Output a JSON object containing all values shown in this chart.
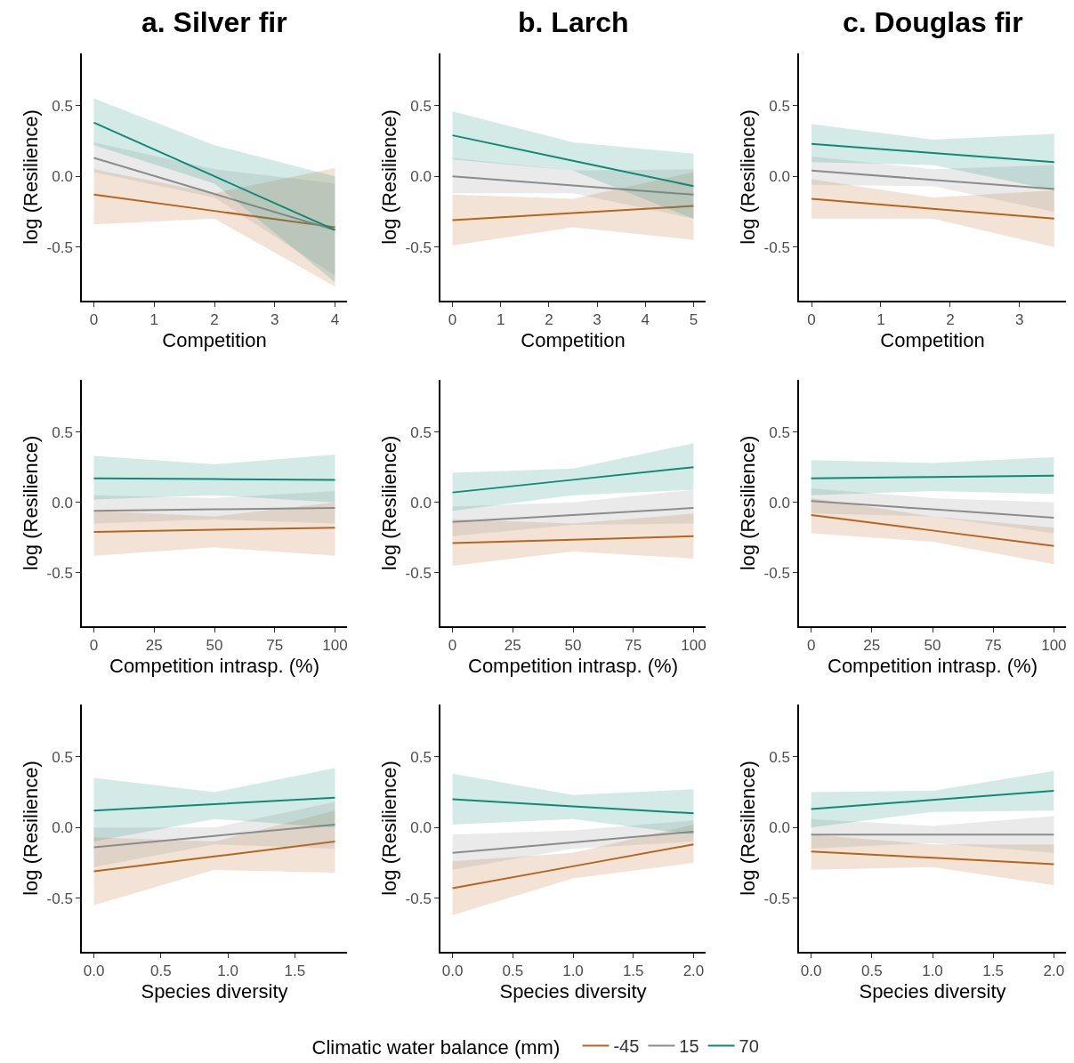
{
  "chart_data": [
    {
      "type": "line",
      "title": "a. Silver fir",
      "xlabel": "Competition",
      "ylabel": "log (Resilience)",
      "xlim": [
        -0.2,
        4.2
      ],
      "xticks": [
        0,
        1,
        2,
        3,
        4
      ],
      "ylim": [
        -0.88,
        0.87
      ],
      "yticks": [
        {
          "value": -0.5,
          "label": "-0.5"
        },
        {
          "value": 0,
          "label": "0.0"
        },
        {
          "value": 0.5,
          "label": "0.5"
        }
      ],
      "legend": "bottom",
      "legend_title": "Climatic water balance (mm)",
      "series": [
        {
          "name": "-45",
          "color": "#b5651d",
          "x": [
            0,
            2,
            4
          ],
          "values": [
            -0.13,
            -0.245,
            -0.36
          ],
          "lower": [
            -0.34,
            -0.3,
            -0.78
          ],
          "upper": [
            0.05,
            -0.12,
            0.06
          ]
        },
        {
          "name": "15",
          "color": "#8c8c8c",
          "x": [
            0,
            2,
            4
          ],
          "values": [
            0.13,
            -0.125,
            -0.38
          ],
          "lower": [
            0.03,
            -0.15,
            -0.7
          ],
          "upper": [
            0.24,
            0.05,
            -0.05
          ]
        },
        {
          "name": "70",
          "color": "#0f8a74",
          "x": [
            0,
            2,
            4
          ],
          "values": [
            0.38,
            0,
            -0.38
          ],
          "lower": [
            0.22,
            -0.05,
            -0.75
          ],
          "upper": [
            0.55,
            0.22,
            0
          ]
        }
      ]
    },
    {
      "type": "line",
      "title": "b. Larch",
      "xlabel": "Competition",
      "ylabel": "log (Resilience)",
      "xlim": [
        -0.25,
        5.25
      ],
      "xticks": [
        0,
        1,
        2,
        3,
        4,
        5
      ],
      "ylim": [
        -0.88,
        0.87
      ],
      "yticks": [
        {
          "value": -0.5,
          "label": "-0.5"
        },
        {
          "value": 0,
          "label": "0.0"
        },
        {
          "value": 0.5,
          "label": "0.5"
        }
      ],
      "series": [
        {
          "name": "-45",
          "color": "#b5651d",
          "x": [
            0,
            2.5,
            5
          ],
          "values": [
            -0.31,
            -0.26,
            -0.21
          ],
          "lower": [
            -0.49,
            -0.36,
            -0.45
          ],
          "upper": [
            -0.13,
            -0.16,
            0.03
          ]
        },
        {
          "name": "15",
          "color": "#8c8c8c",
          "x": [
            0,
            2.5,
            5
          ],
          "values": [
            0,
            -0.065,
            -0.13
          ],
          "lower": [
            -0.12,
            -0.12,
            -0.3
          ],
          "upper": [
            0.13,
            0.04,
            0.05
          ]
        },
        {
          "name": "70",
          "color": "#0f8a74",
          "x": [
            0,
            2.5,
            5
          ],
          "values": [
            0.29,
            0.11,
            -0.07
          ],
          "lower": [
            0.12,
            0.04,
            -0.3
          ],
          "upper": [
            0.46,
            0.24,
            0.16
          ]
        }
      ]
    },
    {
      "type": "line",
      "title": "c. Douglas fir",
      "xlabel": "Competition",
      "ylabel": "log (Resilience)",
      "xlim": [
        -0.18,
        3.67
      ],
      "xticks": [
        0,
        1,
        2,
        3
      ],
      "ylim": [
        -0.88,
        0.87
      ],
      "yticks": [
        {
          "value": -0.5,
          "label": "-0.5"
        },
        {
          "value": 0,
          "label": "0.0"
        },
        {
          "value": 0.5,
          "label": "0.5"
        }
      ],
      "series": [
        {
          "name": "-45",
          "color": "#b5651d",
          "x": [
            0,
            1.75,
            3.5
          ],
          "values": [
            -0.16,
            -0.23,
            -0.3
          ],
          "lower": [
            -0.3,
            -0.3,
            -0.5
          ],
          "upper": [
            -0.02,
            -0.15,
            -0.1
          ]
        },
        {
          "name": "15",
          "color": "#8c8c8c",
          "x": [
            0,
            1.75,
            3.5
          ],
          "values": [
            0.04,
            -0.025,
            -0.09
          ],
          "lower": [
            -0.06,
            -0.07,
            -0.25
          ],
          "upper": [
            0.14,
            0.05,
            0.08
          ]
        },
        {
          "name": "70",
          "color": "#0f8a74",
          "x": [
            0,
            1.75,
            3.5
          ],
          "values": [
            0.23,
            0.165,
            0.1
          ],
          "lower": [
            0.1,
            0.08,
            -0.1
          ],
          "upper": [
            0.37,
            0.26,
            0.3
          ]
        }
      ]
    },
    {
      "type": "line",
      "xlabel": "Competition intrasp. (%)",
      "ylabel": "log (Resilience)",
      "xlim": [
        -5,
        105
      ],
      "xticks": [
        0,
        25,
        50,
        75,
        100
      ],
      "ylim": [
        -0.88,
        0.87
      ],
      "yticks": [
        {
          "value": -0.5,
          "label": "-0.5"
        },
        {
          "value": 0,
          "label": "0.0"
        },
        {
          "value": 0.5,
          "label": "0.5"
        }
      ],
      "series": [
        {
          "name": "-45",
          "color": "#b5651d",
          "x": [
            0,
            50,
            100
          ],
          "values": [
            -0.21,
            -0.195,
            -0.18
          ],
          "lower": [
            -0.38,
            -0.32,
            -0.38
          ],
          "upper": [
            -0.06,
            -0.1,
            0
          ]
        },
        {
          "name": "15",
          "color": "#8c8c8c",
          "x": [
            0,
            50,
            100
          ],
          "values": [
            -0.06,
            -0.05,
            -0.04
          ],
          "lower": [
            -0.15,
            -0.12,
            -0.15
          ],
          "upper": [
            0.05,
            0.03,
            0.08
          ]
        },
        {
          "name": "70",
          "color": "#0f8a74",
          "x": [
            0,
            50,
            100
          ],
          "values": [
            0.17,
            0.165,
            0.16
          ],
          "lower": [
            0.02,
            0.05,
            0
          ],
          "upper": [
            0.33,
            0.27,
            0.34
          ]
        }
      ]
    },
    {
      "type": "line",
      "xlabel": "Competition intrasp. (%)",
      "ylabel": "log (Resilience)",
      "xlim": [
        -5,
        105
      ],
      "xticks": [
        0,
        25,
        50,
        75,
        100
      ],
      "ylim": [
        -0.88,
        0.87
      ],
      "yticks": [
        {
          "value": -0.5,
          "label": "-0.5"
        },
        {
          "value": 0,
          "label": "0.0"
        },
        {
          "value": 0.5,
          "label": "0.5"
        }
      ],
      "series": [
        {
          "name": "-45",
          "color": "#b5651d",
          "x": [
            0,
            50,
            100
          ],
          "values": [
            -0.29,
            -0.265,
            -0.24
          ],
          "lower": [
            -0.45,
            -0.35,
            -0.4
          ],
          "upper": [
            -0.12,
            -0.15,
            -0.08
          ]
        },
        {
          "name": "15",
          "color": "#8c8c8c",
          "x": [
            0,
            50,
            100
          ],
          "values": [
            -0.14,
            -0.09,
            -0.04
          ],
          "lower": [
            -0.24,
            -0.16,
            -0.15
          ],
          "upper": [
            -0.03,
            0,
            0.09
          ]
        },
        {
          "name": "70",
          "color": "#0f8a74",
          "x": [
            0,
            50,
            100
          ],
          "values": [
            0.07,
            0.16,
            0.25
          ],
          "lower": [
            -0.06,
            0.05,
            0.09
          ],
          "upper": [
            0.21,
            0.24,
            0.42
          ]
        }
      ]
    },
    {
      "type": "line",
      "xlabel": "Competition intrasp. (%)",
      "ylabel": "log (Resilience)",
      "xlim": [
        -5,
        105
      ],
      "xticks": [
        0,
        25,
        50,
        75,
        100
      ],
      "ylim": [
        -0.88,
        0.87
      ],
      "yticks": [
        {
          "value": -0.5,
          "label": "-0.5"
        },
        {
          "value": 0,
          "label": "0.0"
        },
        {
          "value": 0.5,
          "label": "0.5"
        }
      ],
      "series": [
        {
          "name": "-45",
          "color": "#b5651d",
          "x": [
            0,
            50,
            100
          ],
          "values": [
            -0.09,
            -0.2,
            -0.31
          ],
          "lower": [
            -0.22,
            -0.28,
            -0.44
          ],
          "upper": [
            0.03,
            -0.1,
            -0.18
          ]
        },
        {
          "name": "15",
          "color": "#8c8c8c",
          "x": [
            0,
            50,
            100
          ],
          "values": [
            0.01,
            -0.05,
            -0.11
          ],
          "lower": [
            -0.08,
            -0.1,
            -0.22
          ],
          "upper": [
            0.1,
            0.03,
            0
          ]
        },
        {
          "name": "70",
          "color": "#0f8a74",
          "x": [
            0,
            50,
            100
          ],
          "values": [
            0.17,
            0.18,
            0.19
          ],
          "lower": [
            0.05,
            0.08,
            0.06
          ],
          "upper": [
            0.3,
            0.28,
            0.32
          ]
        }
      ]
    },
    {
      "type": "line",
      "xlabel": "Species diversity",
      "ylabel": "log (Resilience)",
      "xlim": [
        -0.09,
        1.89
      ],
      "xticks": [
        {
          "value": 0,
          "label": "0.0"
        },
        0.5,
        {
          "value": 1,
          "label": "1.0"
        },
        1.5
      ],
      "ylim": [
        -0.88,
        0.87
      ],
      "yticks": [
        {
          "value": -0.5,
          "label": "-0.5"
        },
        {
          "value": 0,
          "label": "0.0"
        },
        {
          "value": 0.5,
          "label": "0.5"
        }
      ],
      "series": [
        {
          "name": "-45",
          "color": "#b5651d",
          "x": [
            0,
            0.9,
            1.8
          ],
          "values": [
            -0.31,
            -0.205,
            -0.1
          ],
          "lower": [
            -0.55,
            -0.3,
            -0.32
          ],
          "upper": [
            -0.07,
            -0.1,
            0.12
          ]
        },
        {
          "name": "15",
          "color": "#8c8c8c",
          "x": [
            0,
            0.9,
            1.8
          ],
          "values": [
            -0.14,
            -0.06,
            0.02
          ],
          "lower": [
            -0.28,
            -0.12,
            -0.15
          ],
          "upper": [
            0,
            0,
            0.18
          ]
        },
        {
          "name": "70",
          "color": "#0f8a74",
          "x": [
            0,
            0.9,
            1.8
          ],
          "values": [
            0.12,
            0.165,
            0.21
          ],
          "lower": [
            -0.1,
            0.06,
            0
          ],
          "upper": [
            0.35,
            0.25,
            0.42
          ]
        }
      ]
    },
    {
      "type": "line",
      "xlabel": "Species diversity",
      "ylabel": "log (Resilience)",
      "xlim": [
        -0.1,
        2.1
      ],
      "xticks": [
        {
          "value": 0,
          "label": "0.0"
        },
        0.5,
        {
          "value": 1,
          "label": "1.0"
        },
        1.5,
        {
          "value": 2,
          "label": "2.0"
        }
      ],
      "ylim": [
        -0.88,
        0.87
      ],
      "yticks": [
        {
          "value": -0.5,
          "label": "-0.5"
        },
        {
          "value": 0,
          "label": "0.0"
        },
        {
          "value": 0.5,
          "label": "0.5"
        }
      ],
      "series": [
        {
          "name": "-45",
          "color": "#b5651d",
          "x": [
            0,
            1,
            2
          ],
          "values": [
            -0.43,
            -0.275,
            -0.12
          ],
          "lower": [
            -0.62,
            -0.36,
            -0.25
          ],
          "upper": [
            -0.24,
            -0.18,
            0.02
          ]
        },
        {
          "name": "15",
          "color": "#8c8c8c",
          "x": [
            0,
            1,
            2
          ],
          "values": [
            -0.18,
            -0.105,
            -0.03
          ],
          "lower": [
            -0.3,
            -0.15,
            -0.1
          ],
          "upper": [
            -0.05,
            -0.02,
            0.05
          ]
        },
        {
          "name": "70",
          "color": "#0f8a74",
          "x": [
            0,
            1,
            2
          ],
          "values": [
            0.2,
            0.15,
            0.1
          ],
          "lower": [
            0.02,
            0.06,
            -0.05
          ],
          "upper": [
            0.38,
            0.23,
            0.27
          ]
        }
      ]
    },
    {
      "type": "line",
      "xlabel": "Species diversity",
      "ylabel": "log (Resilience)",
      "xlim": [
        -0.1,
        2.1
      ],
      "xticks": [
        {
          "value": 0,
          "label": "0.0"
        },
        0.5,
        {
          "value": 1,
          "label": "1.0"
        },
        1.5,
        {
          "value": 2,
          "label": "2.0"
        }
      ],
      "ylim": [
        -0.88,
        0.87
      ],
      "yticks": [
        {
          "value": -0.5,
          "label": "-0.5"
        },
        {
          "value": 0,
          "label": "0.0"
        },
        {
          "value": 0.5,
          "label": "0.5"
        }
      ],
      "series": [
        {
          "name": "-45",
          "color": "#b5651d",
          "x": [
            0,
            1,
            2
          ],
          "values": [
            -0.17,
            -0.215,
            -0.26
          ],
          "lower": [
            -0.3,
            -0.28,
            -0.41
          ],
          "upper": [
            -0.05,
            -0.12,
            -0.12
          ]
        },
        {
          "name": "15",
          "color": "#8c8c8c",
          "x": [
            0,
            1,
            2
          ],
          "values": [
            -0.05,
            -0.05,
            -0.05
          ],
          "lower": [
            -0.15,
            -0.11,
            -0.18
          ],
          "upper": [
            0.06,
            0.01,
            0.08
          ]
        },
        {
          "name": "70",
          "color": "#0f8a74",
          "x": [
            0,
            1,
            2
          ],
          "values": [
            0.13,
            0.195,
            0.26
          ],
          "lower": [
            0,
            0.11,
            0.12
          ],
          "upper": [
            0.25,
            0.26,
            0.4
          ]
        }
      ]
    }
  ]
}
